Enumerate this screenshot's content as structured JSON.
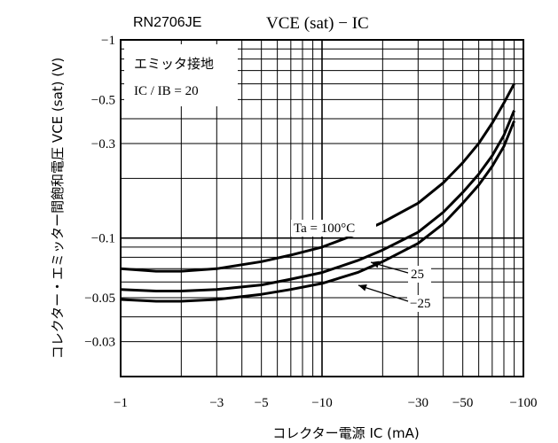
{
  "chart_data": {
    "type": "line",
    "part_number": "RN2706JE",
    "title": "VCE (sat) − IC",
    "xlabel": "コレクター電源 IC (mA)",
    "ylabel": "コレクター・エミッター間飽和電圧 VCE (sat) (V)",
    "x_scale": "log",
    "y_scale": "log",
    "xlim": [
      -1,
      -100
    ],
    "ylim": [
      -0.02,
      -1
    ],
    "x_tick_labels": [
      "−1",
      "−3",
      "−5",
      "−10",
      "−30",
      "−50",
      "−100"
    ],
    "y_tick_labels": [
      "−1",
      "−0.5",
      "−0.3",
      "−0.1",
      "−0.05",
      "−0.03"
    ],
    "condition_box": [
      "エミッタ接地",
      "IC / IB = 20"
    ],
    "grid": true,
    "series": [
      {
        "name": "Ta = 100°C",
        "x": [
          -1,
          -1.5,
          -2,
          -3,
          -5,
          -7,
          -10,
          -15,
          -20,
          -30,
          -40,
          -50,
          -60,
          -70,
          -80,
          -90
        ],
        "y": [
          -0.07,
          -0.068,
          -0.068,
          -0.07,
          -0.076,
          -0.082,
          -0.09,
          -0.105,
          -0.12,
          -0.15,
          -0.19,
          -0.24,
          -0.3,
          -0.38,
          -0.48,
          -0.6
        ]
      },
      {
        "name": "25",
        "x": [
          -1,
          -1.5,
          -2,
          -3,
          -5,
          -7,
          -10,
          -15,
          -20,
          -30,
          -40,
          -50,
          -60,
          -70,
          -80,
          -90
        ],
        "y": [
          -0.055,
          -0.054,
          -0.054,
          -0.055,
          -0.058,
          -0.062,
          -0.067,
          -0.077,
          -0.087,
          -0.107,
          -0.135,
          -0.17,
          -0.21,
          -0.26,
          -0.33,
          -0.44
        ]
      },
      {
        "name": "−25",
        "x": [
          -1,
          -1.5,
          -2,
          -3,
          -5,
          -7,
          -10,
          -15,
          -20,
          -30,
          -40,
          -50,
          -60,
          -70,
          -80,
          -90
        ],
        "y": [
          -0.049,
          -0.048,
          -0.048,
          -0.049,
          -0.052,
          -0.055,
          -0.059,
          -0.067,
          -0.076,
          -0.094,
          -0.118,
          -0.15,
          -0.185,
          -0.23,
          -0.29,
          -0.39
        ]
      }
    ]
  }
}
